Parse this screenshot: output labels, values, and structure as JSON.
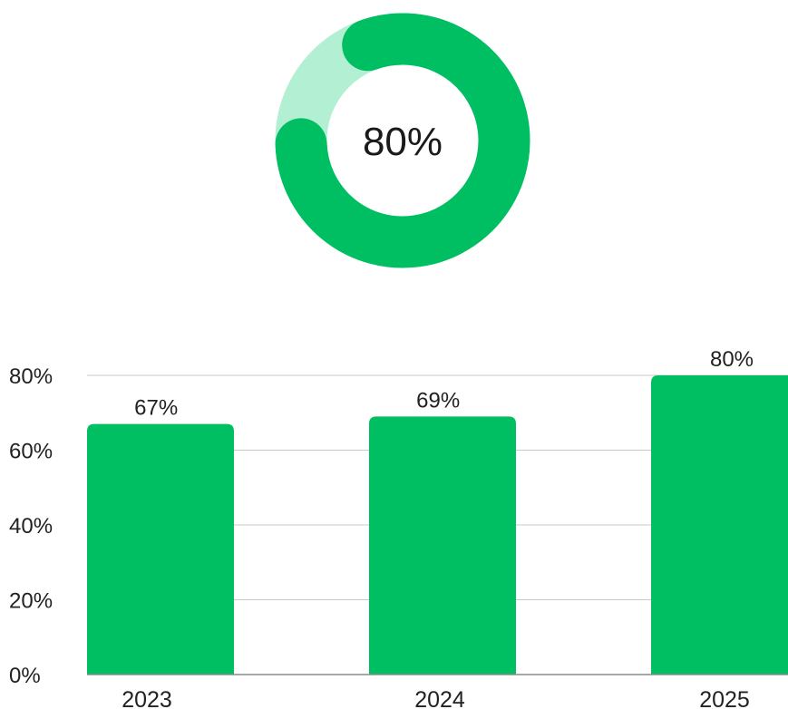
{
  "colors": {
    "bar": "#00BE62",
    "donut_fill": "#00BE62",
    "donut_track": "#B3F0D3",
    "gridline": "#C8C8C8",
    "axis": "#8A8A8A"
  },
  "chart_data": [
    {
      "type": "pie",
      "variant": "donut",
      "value": 80,
      "max": 100,
      "center_label": "80%"
    },
    {
      "type": "bar",
      "categories": [
        "2023",
        "2024",
        "2025"
      ],
      "values": [
        67,
        69,
        80
      ],
      "data_labels": [
        "67%",
        "69%",
        "80%"
      ],
      "yticks": [
        "0%",
        "20%",
        "40%",
        "60%",
        "80%"
      ],
      "ylim": [
        0,
        80
      ],
      "grid": true,
      "xlabel": "",
      "ylabel": ""
    }
  ]
}
